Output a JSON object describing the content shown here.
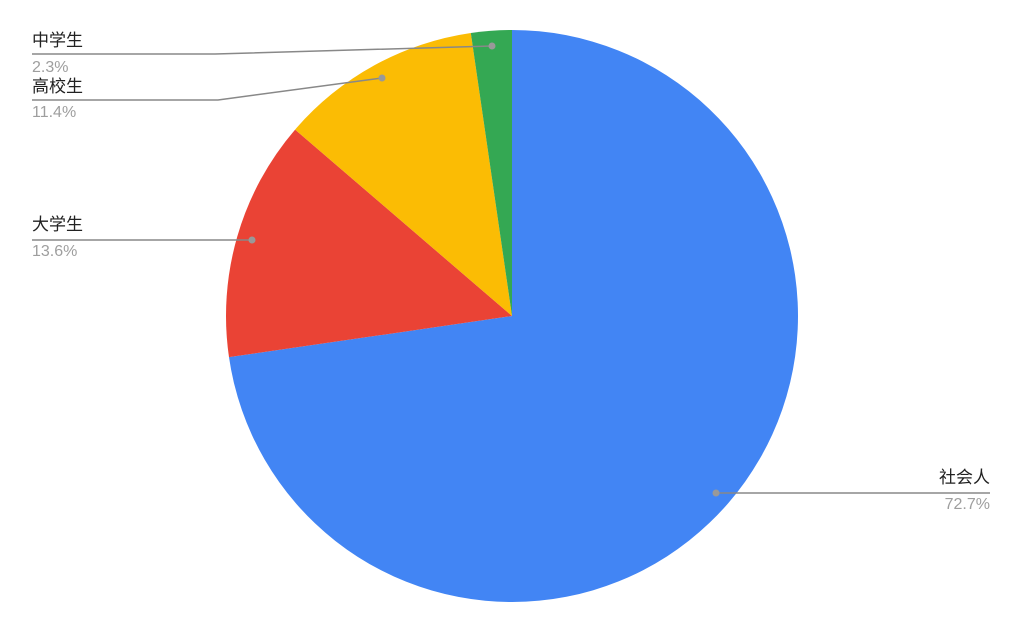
{
  "chart_data": {
    "type": "pie",
    "start": "top",
    "direction": "clockwise",
    "slices": [
      {
        "label": "社会人",
        "percent_label": "72.7%",
        "value": 72.7,
        "color": "#4285f4"
      },
      {
        "label": "大学生",
        "percent_label": "13.6%",
        "value": 13.6,
        "color": "#ea4335"
      },
      {
        "label": "高校生",
        "percent_label": "11.4%",
        "value": 11.4,
        "color": "#fbbc04"
      },
      {
        "label": "中学生",
        "percent_label": "2.3%",
        "value": 2.3,
        "color": "#34a853"
      }
    ],
    "legend": "none"
  }
}
